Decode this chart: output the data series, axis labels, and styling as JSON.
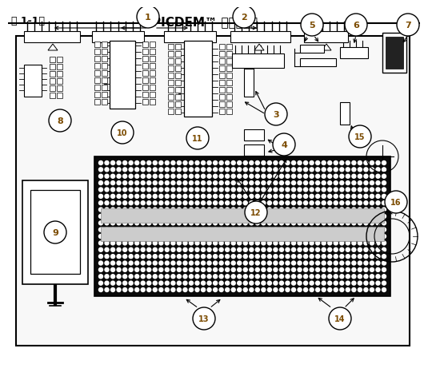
{
  "title_left": "图 1-1：",
  "title_right": "PICDEM™ 实验开发板",
  "bg_color": "#ffffff",
  "black": "#000000",
  "blue": "#7B4B00",
  "board_fill": "#f8f8f8",
  "dark_fill": "#111111",
  "mid_fill": "#555555"
}
